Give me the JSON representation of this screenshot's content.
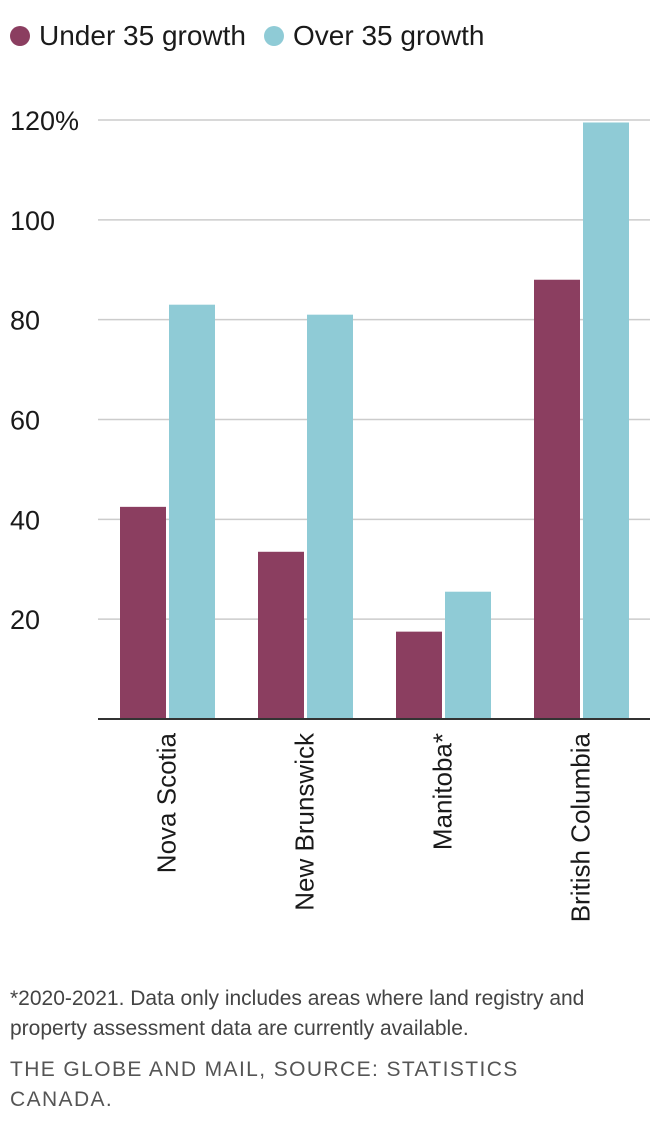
{
  "chart_data": {
    "type": "bar",
    "categories": [
      "Nova Scotia",
      "New Brunswick",
      "Manitoba*",
      "British Columbia"
    ],
    "series": [
      {
        "name": "Under 35 growth",
        "color": "#8b3e60",
        "values": [
          42.5,
          33.5,
          17.5,
          88
        ]
      },
      {
        "name": "Over 35 growth",
        "color": "#8fcbd6",
        "values": [
          83,
          81,
          25.5,
          119.5
        ]
      }
    ],
    "ylim": [
      0,
      120
    ],
    "yticks": [
      20,
      40,
      60,
      80,
      100,
      120
    ],
    "ytick_labels": [
      "20",
      "40",
      "60",
      "80",
      "100",
      "120%"
    ],
    "grid": true,
    "legend_position": "top-left"
  },
  "footnote": "*2020-2021. Data only includes areas where land registry and property assessment data are currently available.",
  "source": "THE GLOBE AND MAIL, SOURCE: STATISTICS CANADA."
}
